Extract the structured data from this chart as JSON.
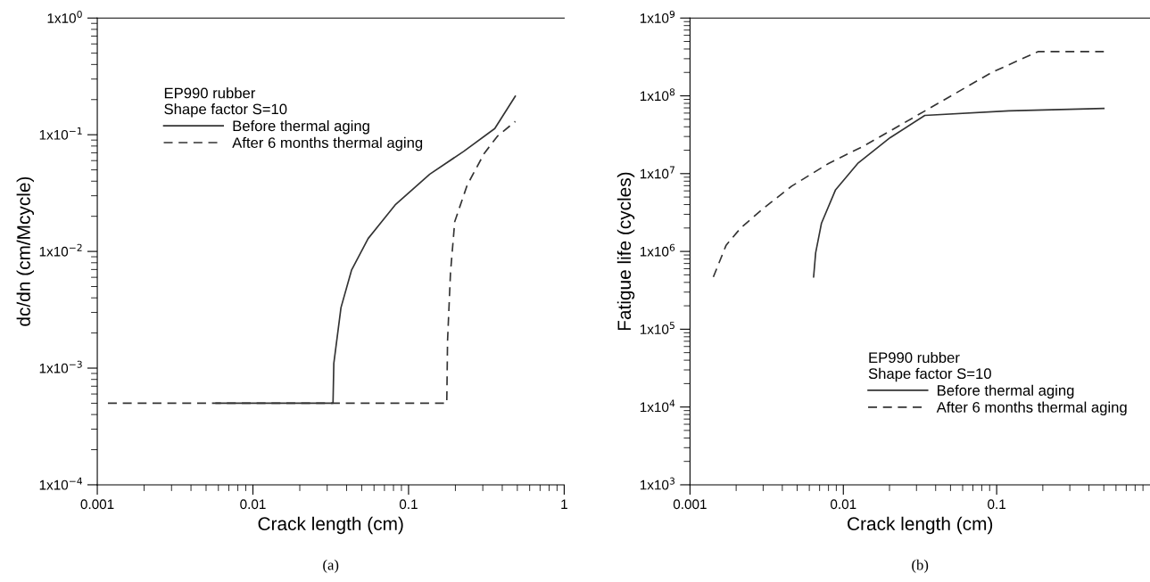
{
  "chart_data": [
    {
      "type": "line",
      "xlabel": "Crack length (cm)",
      "ylabel": "dc/dn (cm/Mcycle)",
      "log": "xy",
      "legend": "top",
      "legend_title": "EP990 rubber\nShape factor S=10",
      "grid": false,
      "marker": "none",
      "xlim": [
        0.001,
        1
      ],
      "ylim": [
        0.0001,
        1
      ],
      "xticks": [
        0.001,
        0.01,
        0.1,
        1
      ],
      "yticks": [
        {
          "value": 0.0001,
          "label": "1x10$^{−4}$"
        },
        {
          "value": 0.001,
          "label": "1x10$^{−3}$"
        },
        {
          "value": 0.01,
          "label": "1x10$^{−2}$"
        },
        {
          "value": 0.1,
          "label": "1x10$^{−1}$"
        },
        {
          "value": 1,
          "label": "1x10$^{0}$"
        }
      ],
      "annotations": [
        "(a)"
      ],
      "series": [
        {
          "name": "Before thermal aging",
          "color": "#333333",
          "line_style": "solid",
          "x": [
            0.0058,
            0.0327,
            0.0331,
            0.0368,
            0.043,
            0.055,
            0.082,
            0.137,
            0.226,
            0.358,
            0.485
          ],
          "values": [
            0.0005,
            0.0005,
            0.0011,
            0.0033,
            0.0069,
            0.0129,
            0.025,
            0.046,
            0.072,
            0.113,
            0.214
          ]
        },
        {
          "name": "After 6 months thermal aging",
          "color": "#333333",
          "line_style": "dashed",
          "x": [
            0.00117,
            0.176,
            0.177,
            0.178,
            0.186,
            0.198,
            0.238,
            0.306,
            0.372,
            0.485
          ],
          "values": [
            0.0005,
            0.0005,
            0.0009,
            0.0017,
            0.0066,
            0.018,
            0.037,
            0.069,
            0.097,
            0.13
          ]
        }
      ]
    },
    {
      "type": "line",
      "xlabel": "Crack length (cm)",
      "ylabel": "Fatigue life (cycles)",
      "log": "xy",
      "legend": "bottom right",
      "legend_title": "EP990 rubber\nShape factor S=10",
      "grid": false,
      "marker": "none",
      "xlim": [
        0.001,
        1
      ],
      "ylim": [
        1000,
        1000000000
      ],
      "xticks": [
        0.001,
        0.01,
        0.1
      ],
      "yticks": [
        {
          "value": 1000,
          "label": "1x10$^{3}$"
        },
        {
          "value": 10000,
          "label": "1x10$^{4}$"
        },
        {
          "value": 100000,
          "label": "1x10$^{5}$"
        },
        {
          "value": 1000000,
          "label": "1x10$^{6}$"
        },
        {
          "value": 10000000,
          "label": "1x10$^{7}$"
        },
        {
          "value": 100000000,
          "label": "1x10$^{8}$"
        },
        {
          "value": 1000000000,
          "label": "1x10$^{9}$"
        }
      ],
      "annotations": [
        "(b)"
      ],
      "series": [
        {
          "name": "Before thermal aging",
          "color": "#333333",
          "line_style": "solid",
          "x": [
            0.0064,
            0.0066,
            0.0072,
            0.0089,
            0.0124,
            0.0202,
            0.034,
            0.12,
            0.5
          ],
          "values": [
            470000,
            960000,
            2300000,
            6200000,
            13500000,
            29000000,
            56000000,
            64000000,
            69000000
          ]
        },
        {
          "name": "After 6 months thermal aging",
          "color": "#333333",
          "line_style": "dashed",
          "x": [
            0.00142,
            0.00172,
            0.00214,
            0.00297,
            0.0046,
            0.008,
            0.0138,
            0.035,
            0.093,
            0.186,
            0.5
          ],
          "values": [
            470000,
            1200000,
            2000000,
            3500000,
            6900000,
            13500000,
            23000000,
            66000000,
            200000000,
            370000000,
            370000000
          ]
        }
      ]
    }
  ]
}
